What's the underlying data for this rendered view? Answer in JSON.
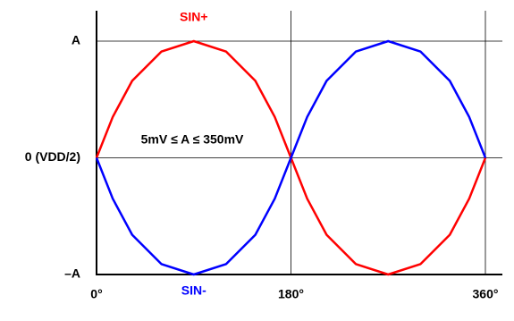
{
  "chart_data": {
    "type": "line",
    "annotation": "5mV ≤ A ≤ 350mV",
    "x": [
      0,
      15,
      33,
      60,
      90,
      120,
      147,
      165,
      180,
      195,
      213,
      240,
      270,
      300,
      327,
      345,
      360
    ],
    "series": [
      {
        "name": "SIN+",
        "color": "#ff0000",
        "values": [
          0,
          0.35,
          0.66,
          0.91,
          1,
          0.91,
          0.66,
          0.35,
          0,
          -0.35,
          -0.66,
          -0.91,
          -1,
          -0.91,
          -0.66,
          -0.35,
          0
        ]
      },
      {
        "name": "SIN-",
        "color": "#0000ff",
        "values": [
          0,
          -0.35,
          -0.66,
          -0.91,
          -1,
          -0.91,
          -0.66,
          -0.35,
          0,
          0.35,
          0.66,
          0.91,
          1,
          0.91,
          0.66,
          0.35,
          0
        ]
      }
    ],
    "xlim": [
      0,
      360
    ],
    "xticks": [
      {
        "value": 0,
        "label": "0°"
      },
      {
        "value": 180,
        "label": "180°"
      },
      {
        "value": 360,
        "label": "360°"
      }
    ],
    "ylim": [
      -1,
      1
    ],
    "yticks": [
      {
        "value": 1,
        "label": "A"
      },
      {
        "value": 0,
        "label": "0 (VDD/2)"
      },
      {
        "value": -1,
        "label": "–A"
      }
    ],
    "grid": true
  }
}
